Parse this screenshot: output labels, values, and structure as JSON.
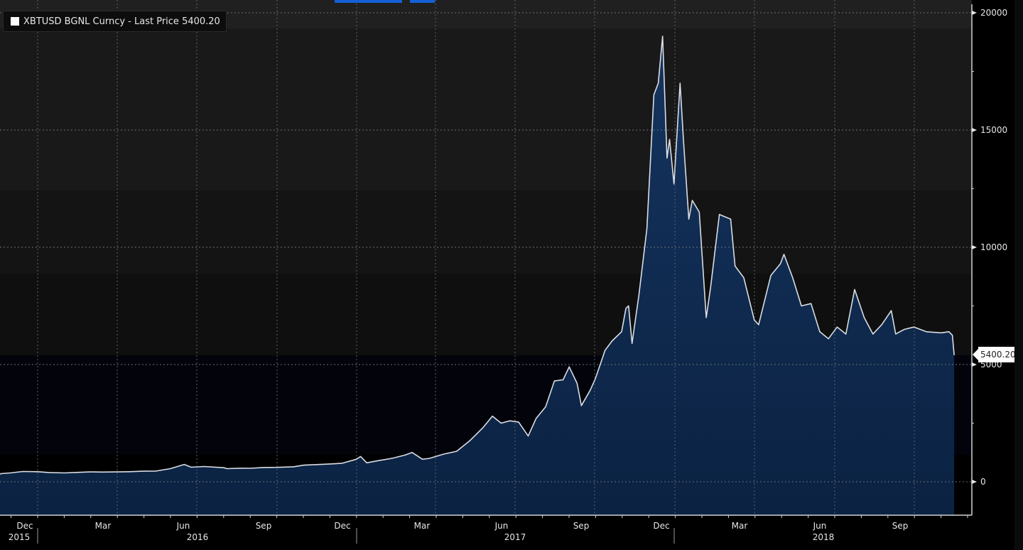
{
  "legend": {
    "swatch_color": "#ffffff",
    "label": "XBTUSD BGNL Curncy - Last Price 5400.20"
  },
  "last_price_tag": "5400.20",
  "colors": {
    "line": "#d9dde3",
    "area_top": "#15345f",
    "area_bottom": "#0b2242",
    "accent_tab": "#1560d8"
  },
  "x_axis": {
    "month_labels": [
      {
        "label": "Dec",
        "x": 35
      },
      {
        "label": "Mar",
        "x": 145
      },
      {
        "label": "Jun",
        "x": 258
      },
      {
        "label": "Sep",
        "x": 371
      },
      {
        "label": "Dec",
        "x": 482
      },
      {
        "label": "Mar",
        "x": 594
      },
      {
        "label": "Jun",
        "x": 706
      },
      {
        "label": "Sep",
        "x": 818
      },
      {
        "label": "Dec",
        "x": 931
      },
      {
        "label": "Mar",
        "x": 1041
      },
      {
        "label": "Jun",
        "x": 1154
      },
      {
        "label": "Sep",
        "x": 1267
      }
    ],
    "year_labels": [
      {
        "label": "2015",
        "x": 27
      },
      {
        "label": "2016",
        "x": 278
      },
      {
        "label": "2017",
        "x": 725
      },
      {
        "label": "2018",
        "x": 1159
      }
    ],
    "year_separators": [
      53,
      502,
      949
    ]
  },
  "y_axis": {
    "ticks": [
      {
        "label": "20000",
        "value": 20000
      },
      {
        "label": "15000",
        "value": 15000
      },
      {
        "label": "10000",
        "value": 10000
      },
      {
        "label": "5000",
        "value": 5000
      },
      {
        "label": "0",
        "value": 0
      }
    ]
  },
  "chart_data": {
    "type": "area",
    "title": "XBTUSD BGNL Curncy - Last Price",
    "xlabel": "",
    "ylabel": "",
    "ylim": [
      -1400,
      20500
    ],
    "x_range": [
      "2015-11",
      "2018-10"
    ],
    "grid": true,
    "legend_position": "top-left",
    "last_value": 5400.2,
    "series": [
      {
        "name": "XBTUSD BGNL Curncy - Last Price",
        "points": [
          [
            "2015-11-01",
            320
          ],
          [
            "2015-11-20",
            350
          ],
          [
            "2015-12-01",
            380
          ],
          [
            "2015-12-15",
            440
          ],
          [
            "2016-01-01",
            430
          ],
          [
            "2016-01-15",
            390
          ],
          [
            "2016-02-01",
            380
          ],
          [
            "2016-02-15",
            400
          ],
          [
            "2016-03-01",
            420
          ],
          [
            "2016-03-15",
            415
          ],
          [
            "2016-04-01",
            420
          ],
          [
            "2016-04-15",
            430
          ],
          [
            "2016-05-01",
            450
          ],
          [
            "2016-05-15",
            455
          ],
          [
            "2016-06-01",
            560
          ],
          [
            "2016-06-17",
            740
          ],
          [
            "2016-06-25",
            620
          ],
          [
            "2016-07-10",
            650
          ],
          [
            "2016-08-01",
            600
          ],
          [
            "2016-08-05",
            560
          ],
          [
            "2016-08-20",
            580
          ],
          [
            "2016-09-01",
            575
          ],
          [
            "2016-09-15",
            610
          ],
          [
            "2016-10-01",
            615
          ],
          [
            "2016-10-20",
            640
          ],
          [
            "2016-11-01",
            710
          ],
          [
            "2016-11-20",
            740
          ],
          [
            "2016-12-01",
            760
          ],
          [
            "2016-12-15",
            790
          ],
          [
            "2016-12-31",
            960
          ],
          [
            "2017-01-05",
            1080
          ],
          [
            "2017-01-12",
            810
          ],
          [
            "2017-01-25",
            900
          ],
          [
            "2017-02-10",
            1000
          ],
          [
            "2017-02-25",
            1140
          ],
          [
            "2017-03-05",
            1250
          ],
          [
            "2017-03-17",
            960
          ],
          [
            "2017-03-25",
            1000
          ],
          [
            "2017-04-10",
            1180
          ],
          [
            "2017-04-25",
            1300
          ],
          [
            "2017-05-10",
            1750
          ],
          [
            "2017-05-25",
            2300
          ],
          [
            "2017-06-05",
            2800
          ],
          [
            "2017-06-15",
            2500
          ],
          [
            "2017-06-25",
            2600
          ],
          [
            "2017-07-05",
            2550
          ],
          [
            "2017-07-16",
            1950
          ],
          [
            "2017-07-25",
            2700
          ],
          [
            "2017-08-05",
            3200
          ],
          [
            "2017-08-15",
            4300
          ],
          [
            "2017-08-25",
            4350
          ],
          [
            "2017-09-01",
            4900
          ],
          [
            "2017-09-10",
            4200
          ],
          [
            "2017-09-15",
            3250
          ],
          [
            "2017-09-25",
            3900
          ],
          [
            "2017-10-01",
            4400
          ],
          [
            "2017-10-12",
            5600
          ],
          [
            "2017-10-20",
            6000
          ],
          [
            "2017-10-31",
            6400
          ],
          [
            "2017-11-05",
            7400
          ],
          [
            "2017-11-08",
            7500
          ],
          [
            "2017-11-12",
            5900
          ],
          [
            "2017-11-20",
            8000
          ],
          [
            "2017-11-29",
            10800
          ],
          [
            "2017-12-07",
            16500
          ],
          [
            "2017-12-12",
            17000
          ],
          [
            "2017-12-17",
            19000
          ],
          [
            "2017-12-22",
            13800
          ],
          [
            "2017-12-25",
            14600
          ],
          [
            "2017-12-30",
            12700
          ],
          [
            "2018-01-06",
            17000
          ],
          [
            "2018-01-10",
            14500
          ],
          [
            "2018-01-16",
            11200
          ],
          [
            "2018-01-20",
            12000
          ],
          [
            "2018-01-28",
            11500
          ],
          [
            "2018-02-05",
            7000
          ],
          [
            "2018-02-10",
            8300
          ],
          [
            "2018-02-20",
            11400
          ],
          [
            "2018-03-05",
            11200
          ],
          [
            "2018-03-10",
            9200
          ],
          [
            "2018-03-20",
            8700
          ],
          [
            "2018-04-01",
            6900
          ],
          [
            "2018-04-06",
            6700
          ],
          [
            "2018-04-20",
            8800
          ],
          [
            "2018-05-01",
            9300
          ],
          [
            "2018-05-05",
            9700
          ],
          [
            "2018-05-15",
            8700
          ],
          [
            "2018-05-25",
            7500
          ],
          [
            "2018-06-05",
            7600
          ],
          [
            "2018-06-15",
            6400
          ],
          [
            "2018-06-25",
            6100
          ],
          [
            "2018-07-05",
            6600
          ],
          [
            "2018-07-15",
            6300
          ],
          [
            "2018-07-25",
            8200
          ],
          [
            "2018-08-05",
            7000
          ],
          [
            "2018-08-15",
            6300
          ],
          [
            "2018-08-25",
            6700
          ],
          [
            "2018-09-05",
            7300
          ],
          [
            "2018-09-10",
            6300
          ],
          [
            "2018-09-20",
            6500
          ],
          [
            "2018-10-01",
            6600
          ],
          [
            "2018-10-15",
            6400
          ],
          [
            "2018-11-01",
            6350
          ],
          [
            "2018-11-10",
            6400
          ],
          [
            "2018-11-14",
            6250
          ],
          [
            "2018-11-16",
            5400.2
          ]
        ]
      }
    ]
  }
}
